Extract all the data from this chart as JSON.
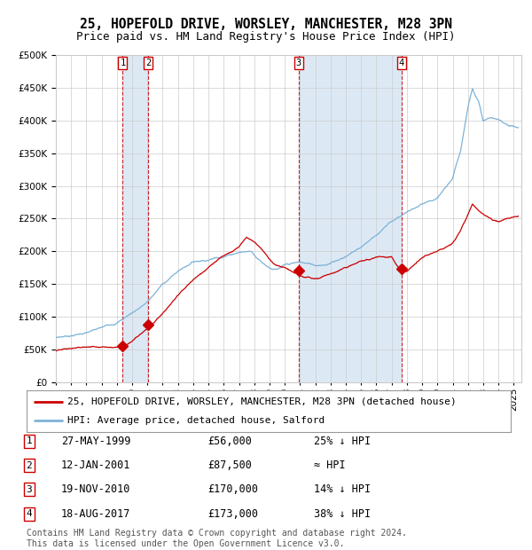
{
  "title": "25, HOPEFOLD DRIVE, WORSLEY, MANCHESTER, M28 3PN",
  "subtitle": "Price paid vs. HM Land Registry's House Price Index (HPI)",
  "ylim": [
    0,
    500000
  ],
  "yticks": [
    0,
    50000,
    100000,
    150000,
    200000,
    250000,
    300000,
    350000,
    400000,
    450000,
    500000
  ],
  "xlim_start": 1995.0,
  "xlim_end": 2025.5,
  "purchases": [
    {
      "num": 1,
      "date_dec": 1999.38,
      "price": 56000,
      "label": "27-MAY-1999",
      "price_str": "£56,000",
      "hpi_str": "25% ↓ HPI"
    },
    {
      "num": 2,
      "date_dec": 2001.04,
      "price": 87500,
      "label": "12-JAN-2001",
      "price_str": "£87,500",
      "hpi_str": "≈ HPI"
    },
    {
      "num": 3,
      "date_dec": 2010.89,
      "price": 170000,
      "label": "19-NOV-2010",
      "price_str": "£170,000",
      "hpi_str": "14% ↓ HPI"
    },
    {
      "num": 4,
      "date_dec": 2017.63,
      "price": 173000,
      "label": "18-AUG-2017",
      "price_str": "£173,000",
      "hpi_str": "38% ↓ HPI"
    }
  ],
  "legend_label_red": "25, HOPEFOLD DRIVE, WORSLEY, MANCHESTER, M28 3PN (detached house)",
  "legend_label_blue": "HPI: Average price, detached house, Salford",
  "footer": "Contains HM Land Registry data © Crown copyright and database right 2024.\nThis data is licensed under the Open Government Licence v3.0.",
  "red_color": "#cc0000",
  "blue_color": "#7eb3d8",
  "shade_color": "#dce9f5",
  "grid_color": "#cccccc"
}
